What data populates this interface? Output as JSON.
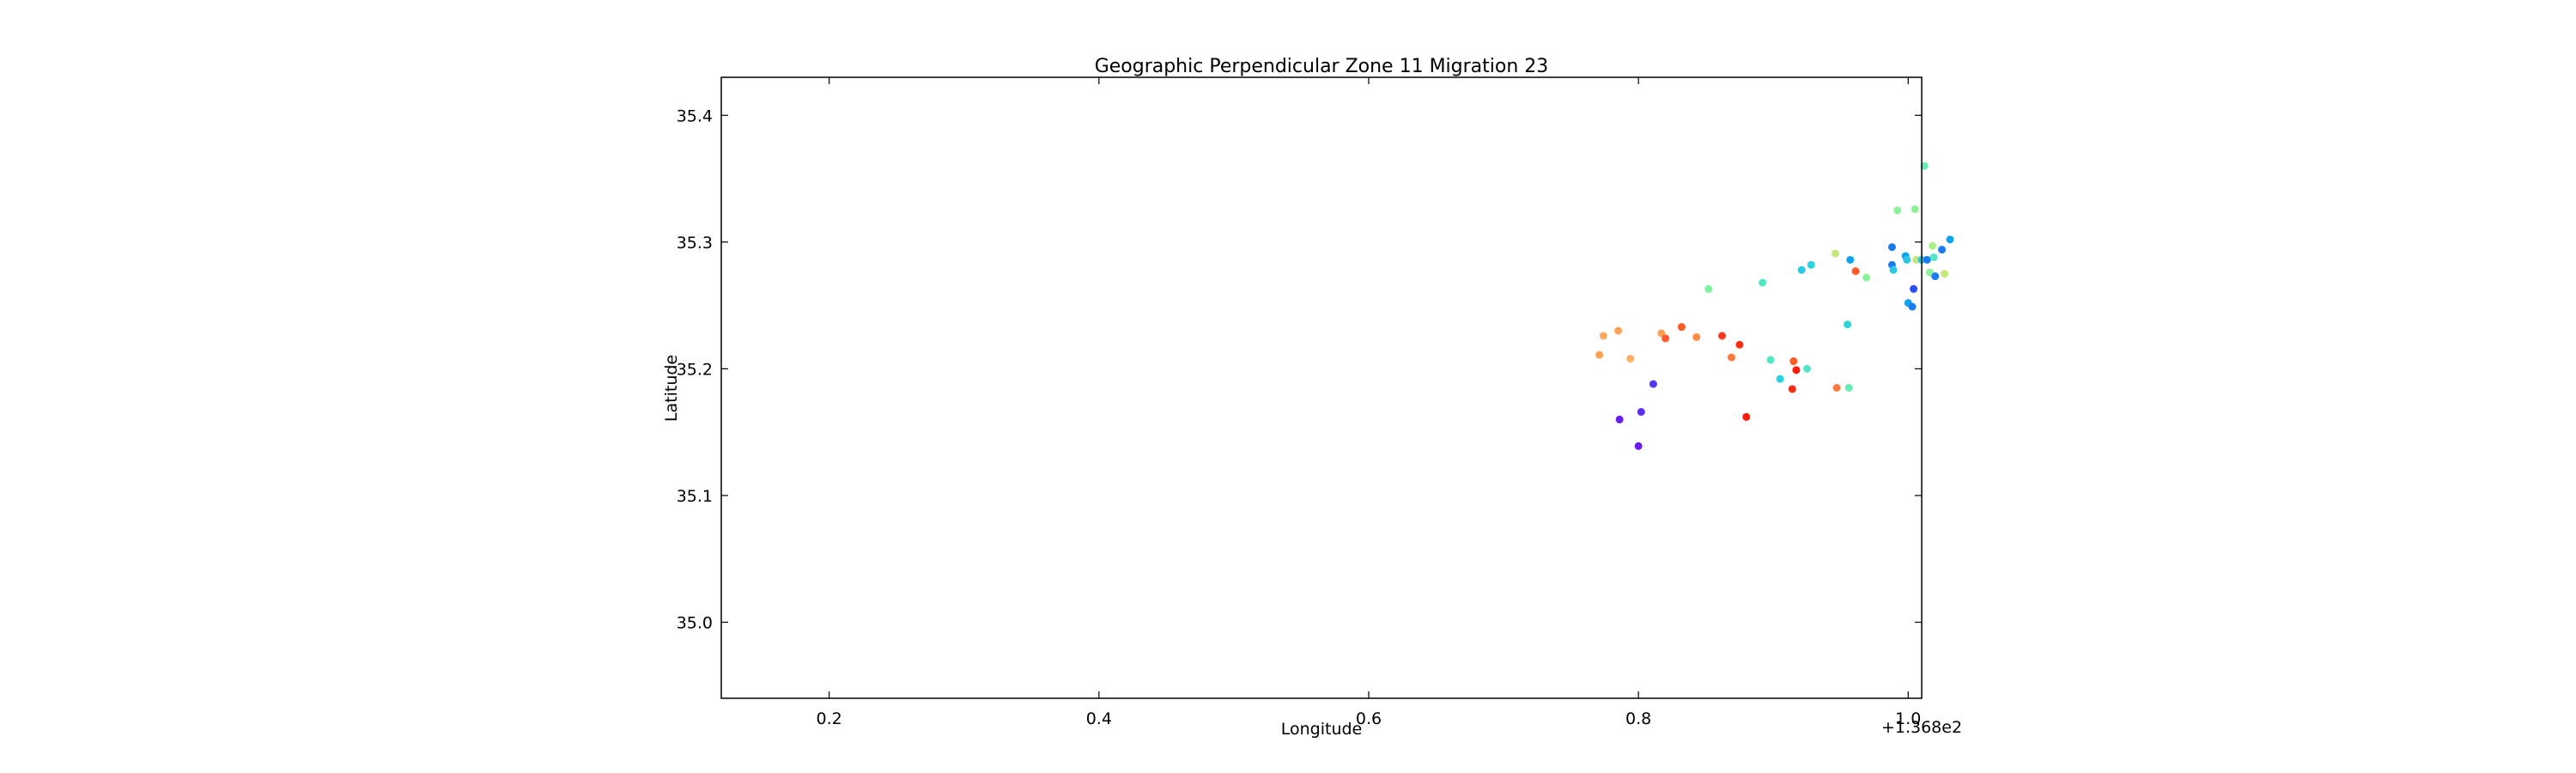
{
  "chart_data": {
    "type": "scatter",
    "title": "Geographic Perpendicular Zone 11 Migration 23",
    "xlabel": "Longitude",
    "ylabel": "Latitude",
    "x_offset_label": "+1.368e2",
    "xlim": [
      0.12,
      1.01
    ],
    "ylim": [
      34.94,
      35.43
    ],
    "x_ticks": [
      0.2,
      0.4,
      0.6,
      0.8,
      1.0
    ],
    "x_tick_labels": [
      "0.2",
      "0.4",
      "0.6",
      "0.8",
      "1.0"
    ],
    "y_ticks": [
      35.0,
      35.1,
      35.2,
      35.3,
      35.4
    ],
    "y_tick_labels": [
      "35.0",
      "35.1",
      "35.2",
      "35.3",
      "35.4"
    ],
    "grid": false,
    "points": [
      {
        "x": 0.8,
        "y": 35.139,
        "color": "#6a1bf2"
      },
      {
        "x": 0.786,
        "y": 35.16,
        "color": "#6a1bf2"
      },
      {
        "x": 0.802,
        "y": 35.166,
        "color": "#5a2ef6"
      },
      {
        "x": 0.811,
        "y": 35.188,
        "color": "#4f3cf8"
      },
      {
        "x": 0.771,
        "y": 35.211,
        "color": "#ffa256"
      },
      {
        "x": 0.774,
        "y": 35.226,
        "color": "#ffa860"
      },
      {
        "x": 0.785,
        "y": 35.23,
        "color": "#ffa256"
      },
      {
        "x": 0.794,
        "y": 35.208,
        "color": "#ffb06a"
      },
      {
        "x": 0.817,
        "y": 35.228,
        "color": "#ff9f50"
      },
      {
        "x": 0.82,
        "y": 35.224,
        "color": "#ff5a28"
      },
      {
        "x": 0.832,
        "y": 35.233,
        "color": "#ff5a28"
      },
      {
        "x": 0.843,
        "y": 35.225,
        "color": "#ff8a46"
      },
      {
        "x": 0.852,
        "y": 35.263,
        "color": "#7cf2a0"
      },
      {
        "x": 0.862,
        "y": 35.226,
        "color": "#ff3a1c"
      },
      {
        "x": 0.869,
        "y": 35.209,
        "color": "#ff7a3c"
      },
      {
        "x": 0.875,
        "y": 35.219,
        "color": "#ff2a12"
      },
      {
        "x": 0.88,
        "y": 35.162,
        "color": "#ff1a0c"
      },
      {
        "x": 0.892,
        "y": 35.268,
        "color": "#52e6c6"
      },
      {
        "x": 0.898,
        "y": 35.207,
        "color": "#52e6c6"
      },
      {
        "x": 0.905,
        "y": 35.192,
        "color": "#2ad2de"
      },
      {
        "x": 0.914,
        "y": 35.184,
        "color": "#ff2a12"
      },
      {
        "x": 0.915,
        "y": 35.206,
        "color": "#ff5a28"
      },
      {
        "x": 0.917,
        "y": 35.199,
        "color": "#ff1a0c"
      },
      {
        "x": 0.921,
        "y": 35.278,
        "color": "#2cc6e6"
      },
      {
        "x": 0.925,
        "y": 35.2,
        "color": "#52e6c6"
      },
      {
        "x": 0.928,
        "y": 35.282,
        "color": "#2ad2de"
      },
      {
        "x": 0.946,
        "y": 35.291,
        "color": "#c4e87a"
      },
      {
        "x": 0.947,
        "y": 35.185,
        "color": "#ff7a3c"
      },
      {
        "x": 0.955,
        "y": 35.235,
        "color": "#2cd6d6"
      },
      {
        "x": 0.956,
        "y": 35.185,
        "color": "#64eeb4"
      },
      {
        "x": 0.957,
        "y": 35.286,
        "color": "#10a4f0"
      },
      {
        "x": 0.961,
        "y": 35.277,
        "color": "#ff5a28"
      },
      {
        "x": 0.969,
        "y": 35.272,
        "color": "#8cf29a"
      },
      {
        "x": 0.988,
        "y": 35.296,
        "color": "#1a7cf4"
      },
      {
        "x": 0.988,
        "y": 35.282,
        "color": "#1a7cf4"
      },
      {
        "x": 0.989,
        "y": 35.278,
        "color": "#2cc6e6"
      },
      {
        "x": 0.992,
        "y": 35.325,
        "color": "#8cf29a"
      },
      {
        "x": 0.998,
        "y": 35.289,
        "color": "#10a4f0"
      },
      {
        "x": 0.999,
        "y": 35.286,
        "color": "#2cc6e6"
      },
      {
        "x": 1.0,
        "y": 35.252,
        "color": "#10a4f0"
      },
      {
        "x": 1.003,
        "y": 35.249,
        "color": "#1a7cf4"
      },
      {
        "x": 1.004,
        "y": 35.263,
        "color": "#2a4cf6"
      },
      {
        "x": 1.005,
        "y": 35.326,
        "color": "#8cf29a"
      },
      {
        "x": 1.006,
        "y": 35.286,
        "color": "#c4e87a"
      },
      {
        "x": 1.01,
        "y": 35.286,
        "color": "#2cc6e6"
      },
      {
        "x": 1.012,
        "y": 35.36,
        "color": "#64eeb4"
      },
      {
        "x": 1.014,
        "y": 35.286,
        "color": "#1a7cf4"
      },
      {
        "x": 1.016,
        "y": 35.276,
        "color": "#8cf29a"
      },
      {
        "x": 1.018,
        "y": 35.297,
        "color": "#a8f08a"
      },
      {
        "x": 1.019,
        "y": 35.288,
        "color": "#52e6c6"
      },
      {
        "x": 1.02,
        "y": 35.273,
        "color": "#1a7cf4"
      },
      {
        "x": 1.025,
        "y": 35.294,
        "color": "#1a7cf4"
      },
      {
        "x": 1.027,
        "y": 35.275,
        "color": "#c4e87a"
      },
      {
        "x": 1.031,
        "y": 35.302,
        "color": "#10a4f0"
      }
    ]
  }
}
